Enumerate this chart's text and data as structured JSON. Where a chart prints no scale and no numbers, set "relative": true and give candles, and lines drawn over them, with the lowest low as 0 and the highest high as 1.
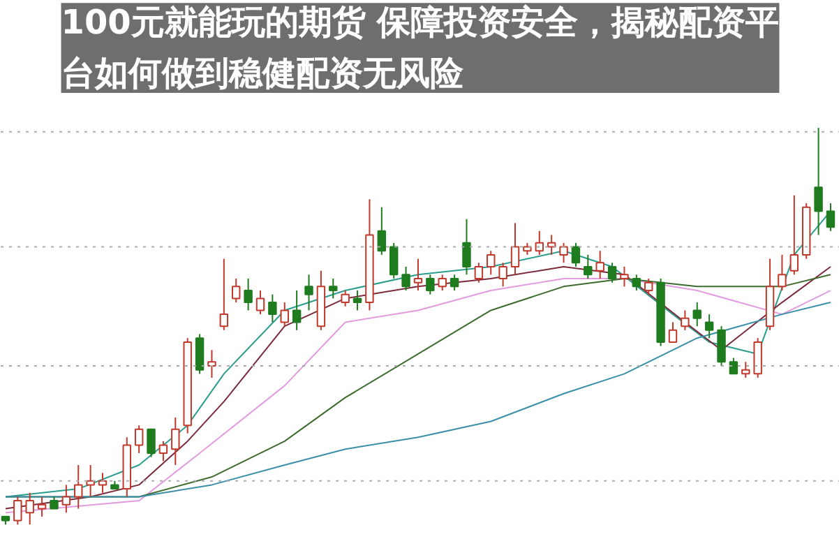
{
  "chart_data": {
    "type": "candlestick",
    "title": "100元就能玩的期货 保障投资安全，揭秘配资平台如何做到稳健配资无风险",
    "relative": true,
    "categories": [
      null,
      null,
      null,
      null,
      null,
      null,
      null,
      null,
      null,
      null,
      null,
      null,
      null,
      null,
      null,
      null,
      null,
      null,
      null,
      null,
      null,
      null,
      null,
      null,
      null,
      null,
      null,
      null,
      null,
      null,
      null,
      null,
      null,
      null,
      null,
      null,
      null,
      null,
      null,
      null,
      null,
      null,
      null,
      null,
      null,
      null,
      null,
      null,
      null,
      null,
      null,
      null,
      null,
      null,
      null,
      null,
      null,
      null,
      null,
      null,
      null,
      null,
      null,
      null,
      null,
      null,
      null,
      null,
      null
    ],
    "ohlc": [
      [
        0.02,
        0.02,
        0,
        0.01
      ],
      [
        0.01,
        0.07,
        0,
        0.06
      ],
      [
        0.03,
        0.08,
        0,
        0.06
      ],
      [
        0.04,
        0.07,
        0.02,
        0.05
      ],
      [
        0.06,
        0.07,
        0.04,
        0.04
      ],
      [
        0.05,
        0.1,
        0.03,
        0.07
      ],
      [
        0.07,
        0.15,
        0.04,
        0.1
      ],
      [
        0.1,
        0.15,
        0.07,
        0.11
      ],
      [
        0.1,
        0.13,
        0.08,
        0.11
      ],
      [
        0.1,
        0.11,
        0.09,
        0.09
      ],
      [
        0.09,
        0.22,
        0.07,
        0.2
      ],
      [
        0.2,
        0.25,
        0.18,
        0.24
      ],
      [
        0.24,
        0.24,
        0.17,
        0.18
      ],
      [
        0.18,
        0.21,
        0.16,
        0.2
      ],
      [
        0.19,
        0.27,
        0.15,
        0.24
      ],
      [
        0.25,
        0.47,
        0.23,
        0.46
      ],
      [
        0.47,
        0.48,
        0.38,
        0.39
      ],
      [
        0.4,
        0.44,
        0.37,
        0.41
      ],
      [
        0.5,
        0.67,
        0.49,
        0.53
      ],
      [
        0.57,
        0.62,
        0.56,
        0.6
      ],
      [
        0.59,
        0.62,
        0.54,
        0.56
      ],
      [
        0.54,
        0.59,
        0.53,
        0.57
      ],
      [
        0.56,
        0.58,
        0.51,
        0.53
      ],
      [
        0.51,
        0.56,
        0.5,
        0.54
      ],
      [
        0.54,
        0.59,
        0.49,
        0.51
      ],
      [
        0.6,
        0.63,
        0.54,
        0.58
      ],
      [
        0.5,
        0.64,
        0.49,
        0.6
      ],
      [
        0.6,
        0.62,
        0.57,
        0.59
      ],
      [
        0.56,
        0.59,
        0.55,
        0.58
      ],
      [
        0.57,
        0.59,
        0.54,
        0.56
      ],
      [
        0.56,
        0.82,
        0.54,
        0.73
      ],
      [
        0.74,
        0.8,
        0.68,
        0.69
      ],
      [
        0.7,
        0.71,
        0.62,
        0.63
      ],
      [
        0.63,
        0.65,
        0.59,
        0.6
      ],
      [
        0.61,
        0.67,
        0.59,
        0.62
      ],
      [
        0.62,
        0.63,
        0.58,
        0.59
      ],
      [
        0.6,
        0.63,
        0.59,
        0.62
      ],
      [
        0.62,
        0.63,
        0.59,
        0.6
      ],
      [
        0.71,
        0.77,
        0.63,
        0.65
      ],
      [
        0.62,
        0.66,
        0.61,
        0.65
      ],
      [
        0.65,
        0.69,
        0.63,
        0.68
      ],
      [
        0.62,
        0.66,
        0.6,
        0.65
      ],
      [
        0.65,
        0.76,
        0.63,
        0.7
      ],
      [
        0.69,
        0.71,
        0.68,
        0.7
      ],
      [
        0.69,
        0.74,
        0.68,
        0.71
      ],
      [
        0.7,
        0.73,
        0.68,
        0.71
      ],
      [
        0.68,
        0.71,
        0.66,
        0.7
      ],
      [
        0.7,
        0.71,
        0.65,
        0.66
      ],
      [
        0.65,
        0.68,
        0.62,
        0.63
      ],
      [
        0.64,
        0.69,
        0.62,
        0.66
      ],
      [
        0.65,
        0.66,
        0.61,
        0.62
      ],
      [
        0.62,
        0.65,
        0.6,
        0.63
      ],
      [
        0.62,
        0.63,
        0.59,
        0.6
      ],
      [
        0.59,
        0.62,
        0.58,
        0.61
      ],
      [
        0.61,
        0.62,
        0.45,
        0.46
      ],
      [
        0.46,
        0.51,
        0.46,
        0.49
      ],
      [
        0.5,
        0.54,
        0.49,
        0.52
      ],
      [
        0.54,
        0.56,
        0.5,
        0.52
      ],
      [
        0.51,
        0.53,
        0.47,
        0.49
      ],
      [
        0.49,
        0.5,
        0.4,
        0.41
      ],
      [
        0.41,
        0.42,
        0.38,
        0.38
      ],
      [
        0.38,
        0.41,
        0.37,
        0.39
      ],
      [
        0.38,
        0.47,
        0.37,
        0.46
      ],
      [
        0.5,
        0.67,
        0.49,
        0.6
      ],
      [
        0.6,
        0.68,
        0.59,
        0.63
      ],
      [
        0.64,
        0.83,
        0.63,
        0.68
      ],
      [
        0.68,
        0.81,
        0.67,
        0.8
      ],
      [
        0.85,
        1,
        0.73,
        0.79
      ],
      [
        0.79,
        0.81,
        0.74,
        0.75
      ]
    ],
    "series": [
      {
        "type": "line",
        "color": "#2a9d8f",
        "values": [
          0.07,
          null,
          null,
          null,
          null,
          null,
          0.09,
          null,
          null,
          null,
          null,
          0.15,
          null,
          null,
          null,
          0.25,
          null,
          null,
          0.38,
          null,
          null,
          null,
          null,
          0.54,
          null,
          null,
          null,
          null,
          0.59,
          null,
          null,
          null,
          null,
          null,
          0.63,
          null,
          null,
          null,
          null,
          null,
          0.65,
          null,
          null,
          null,
          null,
          null,
          0.69,
          null,
          null,
          null,
          0.65,
          null,
          null,
          null,
          null,
          0.53,
          null,
          null,
          0.46,
          null,
          null,
          null,
          0.43,
          null,
          null,
          0.68,
          null,
          null,
          0.79
        ]
      },
      {
        "type": "line",
        "color": "#7b2a3a",
        "values": [
          0.04,
          null,
          null,
          null,
          null,
          null,
          null,
          0.07,
          null,
          null,
          null,
          0.1,
          null,
          null,
          null,
          0.21,
          null,
          null,
          0.31,
          null,
          null,
          null,
          null,
          0.5,
          null,
          null,
          null,
          null,
          0.57,
          null,
          null,
          null,
          null,
          null,
          0.6,
          null,
          null,
          null,
          null,
          null,
          0.62,
          null,
          null,
          null,
          null,
          null,
          0.65,
          null,
          null,
          null,
          null,
          0.63,
          null,
          null,
          null,
          null,
          0.51,
          null,
          null,
          0.44,
          null,
          null,
          null,
          null,
          0.56,
          null,
          null,
          null,
          0.65
        ]
      },
      {
        "type": "line",
        "color": "#e39be0",
        "values": [
          0.03,
          null,
          null,
          null,
          null,
          null,
          null,
          null,
          null,
          null,
          null,
          0.06,
          null,
          null,
          null,
          null,
          0.18,
          null,
          null,
          null,
          null,
          null,
          null,
          0.35,
          null,
          null,
          null,
          null,
          0.51,
          null,
          null,
          null,
          null,
          null,
          0.54,
          null,
          null,
          null,
          null,
          null,
          0.59,
          null,
          null,
          null,
          null,
          null,
          0.62,
          null,
          null,
          null,
          null,
          0.62,
          null,
          null,
          null,
          null,
          null,
          0.59,
          null,
          null,
          null,
          null,
          null,
          null,
          0.53,
          null,
          null,
          null,
          0.59
        ]
      },
      {
        "type": "line",
        "color": "#3d6b2e",
        "values": [
          0.07,
          null,
          null,
          null,
          null,
          null,
          null,
          null,
          null,
          null,
          null,
          0.07,
          null,
          null,
          null,
          null,
          null,
          0.12,
          null,
          null,
          null,
          null,
          null,
          0.21,
          null,
          null,
          null,
          null,
          0.32,
          null,
          null,
          null,
          null,
          null,
          0.43,
          null,
          null,
          null,
          null,
          null,
          0.54,
          null,
          null,
          null,
          null,
          null,
          0.6,
          null,
          null,
          null,
          null,
          0.62,
          null,
          null,
          null,
          null,
          null,
          0.6,
          null,
          null,
          null,
          null,
          null,
          null,
          0.6,
          null,
          null,
          null,
          0.63
        ]
      },
      {
        "type": "line",
        "color": "#3a8fa8",
        "values": [
          0.07,
          null,
          null,
          null,
          null,
          null,
          null,
          null,
          null,
          null,
          null,
          0.07,
          null,
          null,
          null,
          null,
          null,
          0.1,
          null,
          null,
          null,
          null,
          null,
          0.15,
          null,
          null,
          null,
          null,
          0.19,
          null,
          null,
          null,
          null,
          null,
          0.22,
          null,
          null,
          null,
          null,
          null,
          0.26,
          null,
          null,
          null,
          null,
          null,
          0.33,
          null,
          null,
          null,
          null,
          0.38,
          null,
          null,
          null,
          null,
          null,
          0.47,
          null,
          null,
          null,
          null,
          null,
          null,
          0.53,
          null,
          null,
          null,
          0.56
        ]
      }
    ],
    "ref_lines": [
      {
        "axis": "y",
        "value": 0.99,
        "color": "#aaaaaa",
        "line_style": "dotted"
      },
      {
        "axis": "y",
        "value": 0.7,
        "color": "#aaaaaa",
        "line_style": "dotted"
      },
      {
        "axis": "y",
        "value": 0.4,
        "color": "#aaaaaa",
        "line_style": "dotted"
      },
      {
        "axis": "y",
        "value": 0.11,
        "color": "#aaaaaa",
        "line_style": "dotted"
      }
    ]
  }
}
